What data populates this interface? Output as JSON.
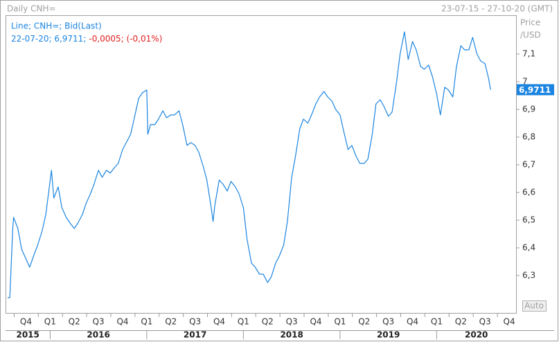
{
  "chart_data": {
    "type": "line",
    "title": "Daily CNH=",
    "date_range": "23-07-15 - 27-10-20 (GMT)",
    "y_axis_label": [
      "Price",
      "/USD"
    ],
    "legend_last": "22-07-20; 6,9711;",
    "legend_change": "-0,0005; (-0,01%)",
    "last_value": {
      "value": 6.9711,
      "label": "6,9711"
    },
    "auto_button": "Auto",
    "xlim": [
      "23-07-15",
      "27-10-20"
    ],
    "ylim": [
      6.165,
      7.24
    ],
    "yticks": [
      {
        "value": 6.3,
        "label": "6,3"
      },
      {
        "value": 6.4,
        "label": "6,4"
      },
      {
        "value": 6.5,
        "label": "6,5"
      },
      {
        "value": 6.6,
        "label": "6,6"
      },
      {
        "value": 6.7,
        "label": "6,7"
      },
      {
        "value": 6.8,
        "label": "6,8"
      },
      {
        "value": 6.9,
        "label": "6,9"
      },
      7,
      {
        "value": 7.1,
        "label": "7,1"
      }
    ],
    "xticks": [
      {
        "value": "01-10-15",
        "label": "Q4"
      },
      {
        "value": "01-01-16",
        "label": "Q1"
      },
      {
        "value": "01-04-16",
        "label": "Q2"
      },
      {
        "value": "01-07-16",
        "label": "Q3"
      },
      {
        "value": "01-10-16",
        "label": "Q4"
      },
      {
        "value": "01-01-17",
        "label": "Q1"
      },
      {
        "value": "01-04-17",
        "label": "Q2"
      },
      {
        "value": "01-07-17",
        "label": "Q3"
      },
      {
        "value": "01-10-17",
        "label": "Q4"
      },
      {
        "value": "01-01-18",
        "label": "Q1"
      },
      {
        "value": "01-04-18",
        "label": "Q2"
      },
      {
        "value": "01-07-18",
        "label": "Q3"
      },
      {
        "value": "01-10-18",
        "label": "Q4"
      },
      {
        "value": "01-01-19",
        "label": "Q1"
      },
      {
        "value": "01-04-19",
        "label": "Q2"
      },
      {
        "value": "01-07-19",
        "label": "Q3"
      },
      {
        "value": "01-10-19",
        "label": "Q4"
      },
      {
        "value": "01-01-20",
        "label": "Q1"
      },
      {
        "value": "01-04-20",
        "label": "Q2"
      },
      {
        "value": "01-07-20",
        "label": "Q3"
      },
      {
        "value": "01-10-20",
        "label": "Q4"
      }
    ],
    "year_ticks": [
      {
        "value": "01-01-15",
        "label": "2015"
      },
      {
        "value": "01-01-16",
        "label": "2016"
      },
      {
        "value": "01-01-17",
        "label": "2017"
      },
      {
        "value": "01-01-18",
        "label": "2018"
      },
      {
        "value": "01-01-19",
        "label": "2019"
      },
      {
        "value": "01-01-20",
        "label": "2020"
      }
    ],
    "x": [
      "23-07-15",
      "01-08-15",
      "12-08-15",
      "15-08-15",
      "01-09-15",
      "15-09-15",
      "01-10-15",
      "15-10-15",
      "01-11-15",
      "15-11-15",
      "01-12-15",
      "15-12-15",
      "06-01-16",
      "15-01-16",
      "01-02-16",
      "15-02-16",
      "01-03-16",
      "15-03-16",
      "01-04-16",
      "15-04-16",
      "01-05-16",
      "15-05-16",
      "01-06-16",
      "15-06-16",
      "01-07-16",
      "15-07-16",
      "01-08-16",
      "15-08-16",
      "01-09-16",
      "15-09-16",
      "01-10-16",
      "15-10-16",
      "01-11-16",
      "15-11-16",
      "01-12-16",
      "15-12-16",
      "01-01-17",
      "05-01-17",
      "15-01-17",
      "01-02-17",
      "15-02-17",
      "01-03-17",
      "15-03-17",
      "01-04-17",
      "15-04-17",
      "01-05-17",
      "15-05-17",
      "01-06-17",
      "15-06-17",
      "01-07-17",
      "15-07-17",
      "01-08-17",
      "15-08-17",
      "01-09-17",
      "08-09-17",
      "15-09-17",
      "01-10-17",
      "15-10-17",
      "01-11-17",
      "15-11-17",
      "01-12-17",
      "15-12-17",
      "01-01-18",
      "15-01-18",
      "01-02-18",
      "15-02-18",
      "01-03-18",
      "15-03-18",
      "01-04-18",
      "15-04-18",
      "01-05-18",
      "15-05-18",
      "01-06-18",
      "15-06-18",
      "01-07-18",
      "15-07-18",
      "01-08-18",
      "15-08-18",
      "01-09-18",
      "15-09-18",
      "01-10-18",
      "15-10-18",
      "01-11-18",
      "15-11-18",
      "01-12-18",
      "15-12-18",
      "01-01-19",
      "15-01-19",
      "01-02-19",
      "15-02-19",
      "01-03-19",
      "15-03-19",
      "01-04-19",
      "15-04-19",
      "01-05-19",
      "15-05-19",
      "01-06-19",
      "15-06-19",
      "01-07-19",
      "15-07-19",
      "01-08-19",
      "15-08-19",
      "01-09-19",
      "15-09-19",
      "01-10-19",
      "15-10-19",
      "01-11-19",
      "15-11-19",
      "01-12-19",
      "15-12-19",
      "01-01-20",
      "15-01-20",
      "01-02-20",
      "15-02-20",
      "01-03-20",
      "15-03-20",
      "01-04-20",
      "15-04-20",
      "01-05-20",
      "15-05-20",
      "01-06-20",
      "15-06-20",
      "01-07-20",
      "15-07-20",
      "22-07-20"
    ],
    "series": [
      {
        "name": "Line; CNH=; Bid(Last)",
        "color": "#1a84e0",
        "values": [
          6.22,
          6.22,
          6.47,
          6.51,
          6.47,
          6.395,
          6.36,
          6.33,
          6.375,
          6.41,
          6.46,
          6.52,
          6.68,
          6.58,
          6.62,
          6.545,
          6.51,
          6.49,
          6.47,
          6.49,
          6.52,
          6.56,
          6.595,
          6.63,
          6.68,
          6.655,
          6.68,
          6.67,
          6.69,
          6.705,
          6.755,
          6.78,
          6.81,
          6.87,
          6.94,
          6.96,
          6.97,
          6.81,
          6.845,
          6.845,
          6.865,
          6.895,
          6.87,
          6.88,
          6.88,
          6.895,
          6.845,
          6.77,
          6.78,
          6.77,
          6.745,
          6.695,
          6.645,
          6.545,
          6.495,
          6.555,
          6.645,
          6.63,
          6.605,
          6.64,
          6.62,
          6.595,
          6.545,
          6.43,
          6.345,
          6.33,
          6.305,
          6.305,
          6.275,
          6.295,
          6.345,
          6.37,
          6.41,
          6.495,
          6.655,
          6.73,
          6.83,
          6.865,
          6.85,
          6.88,
          6.92,
          6.945,
          6.965,
          6.945,
          6.93,
          6.9,
          6.88,
          6.82,
          6.755,
          6.77,
          6.73,
          6.705,
          6.705,
          6.72,
          6.81,
          6.92,
          6.935,
          6.91,
          6.875,
          6.89,
          6.995,
          7.1,
          7.18,
          7.08,
          7.145,
          7.115,
          7.055,
          7.045,
          7.06,
          7.02,
          6.955,
          6.88,
          6.98,
          6.97,
          6.945,
          7.055,
          7.13,
          7.115,
          7.115,
          7.16,
          7.1,
          7.075,
          7.065,
          7.01,
          6.9711
        ]
      }
    ]
  }
}
